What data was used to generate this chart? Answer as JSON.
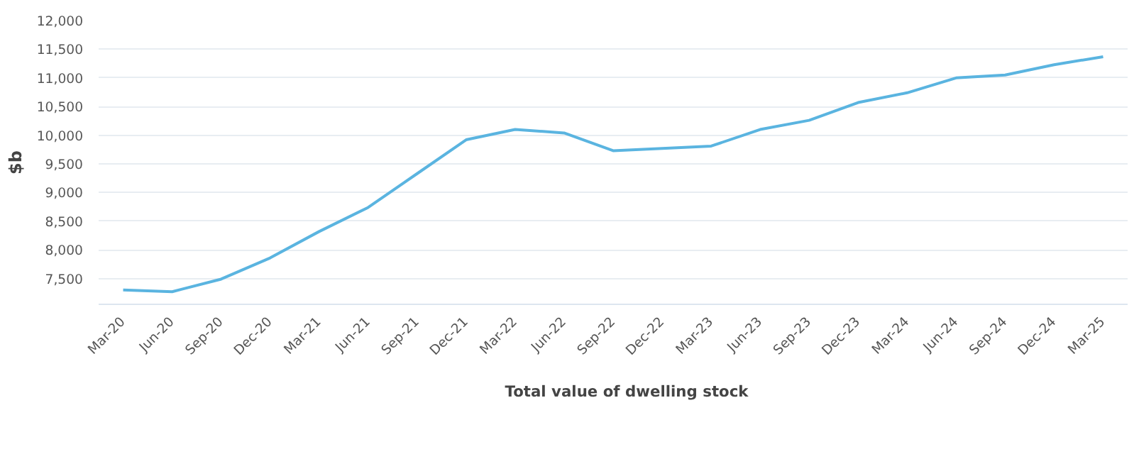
{
  "chart_data": {
    "type": "line",
    "ylabel": "$b",
    "categories": [
      "Mar-20",
      "Jun-20",
      "Sep-20",
      "Dec-20",
      "Mar-21",
      "Jun-21",
      "Sep-21",
      "Dec-21",
      "Mar-22",
      "Jun-22",
      "Sep-22",
      "Dec-22",
      "Mar-23",
      "Jun-23",
      "Sep-23",
      "Dec-23",
      "Mar-24",
      "Jun-24",
      "Sep-24",
      "Dec-24",
      "Mar-25"
    ],
    "series": [
      {
        "name": "Total value of dwelling stock",
        "color": "#5ab4e0",
        "values": [
          7300,
          7270,
          7490,
          7860,
          8320,
          8740,
          9330,
          9920,
          10100,
          10040,
          9730,
          9770,
          9810,
          10100,
          10260,
          10570,
          10740,
          11000,
          11050,
          11230,
          11370
        ]
      }
    ],
    "ylim": [
      7050,
      12000
    ],
    "yticks": [
      {
        "value": 7500,
        "label": "7,500"
      },
      {
        "value": 8000,
        "label": "8,000"
      },
      {
        "value": 8500,
        "label": "8,500"
      },
      {
        "value": 9000,
        "label": "9,000"
      },
      {
        "value": 9500,
        "label": "9,500"
      },
      {
        "value": 10000,
        "label": "10,000"
      },
      {
        "value": 10500,
        "label": "10,500"
      },
      {
        "value": 11000,
        "label": "11,000"
      },
      {
        "value": 11500,
        "label": "11,500"
      },
      {
        "value": 12000,
        "label": "12,000"
      }
    ],
    "grid": "y",
    "legend": "bottom",
    "marker": "none",
    "line_style": "solid"
  }
}
